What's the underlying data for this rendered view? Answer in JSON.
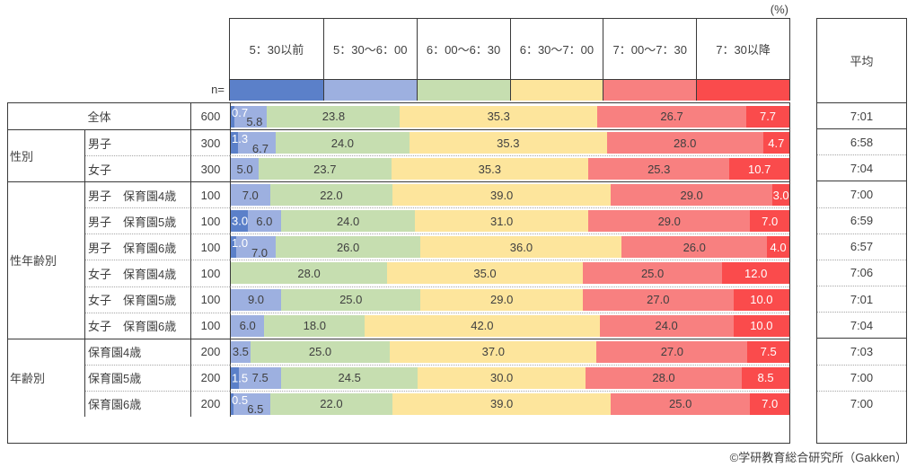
{
  "labels": {
    "percent": "(%)",
    "n": "n=",
    "avg_header": "平均"
  },
  "footer": "©学研教育総合研究所（Gakken）",
  "colors": {
    "border": "#3a3a3a",
    "dotted_separator": "#a6a6a6",
    "text": "#3f3f3f"
  },
  "chart_data": {
    "type": "bar",
    "stacked": true,
    "orientation": "horizontal",
    "unit": "%",
    "xlim": [
      0,
      100
    ],
    "series_labels": [
      "5：30以前",
      "5：30～6：00",
      "6：00～6：30",
      "6：30～7：00",
      "7：00～7：30",
      "7：30以降"
    ],
    "series_colors": [
      "#5b80c9",
      "#9db0e0",
      "#c6deb0",
      "#fde59c",
      "#f88080",
      "#fa4b4c"
    ],
    "series_text_colors": [
      "#ffffff",
      "#3f3f3f",
      "#3f3f3f",
      "#3f3f3f",
      "#3f3f3f",
      "#ffffff"
    ],
    "avg_column_label": "平均",
    "groups": [
      {
        "group": "",
        "rows": [
          {
            "label": "全体",
            "n": "600",
            "values": [
              0.7,
              5.8,
              23.8,
              35.3,
              26.7,
              7.7
            ],
            "avg": "7:01",
            "stagger": true
          }
        ]
      },
      {
        "group": "性別",
        "rows": [
          {
            "label": "男子",
            "n": "300",
            "values": [
              1.3,
              6.7,
              24.0,
              35.3,
              28.0,
              4.7
            ],
            "avg": "6:58",
            "stagger": true
          },
          {
            "label": "女子",
            "n": "300",
            "values": [
              0,
              5.0,
              23.7,
              35.3,
              25.3,
              10.7
            ],
            "avg": "7:04",
            "stagger": false
          }
        ]
      },
      {
        "group": "性年齢別",
        "rows": [
          {
            "label": "男子　保育園4歳",
            "n": "100",
            "values": [
              0,
              7.0,
              22.0,
              39.0,
              29.0,
              3.0
            ],
            "avg": "7:00",
            "stagger": false
          },
          {
            "label": "男子　保育園5歳",
            "n": "100",
            "values": [
              3.0,
              6.0,
              24.0,
              31.0,
              29.0,
              7.0
            ],
            "avg": "6:59",
            "stagger": false
          },
          {
            "label": "男子　保育園6歳",
            "n": "100",
            "values": [
              1.0,
              7.0,
              26.0,
              36.0,
              26.0,
              4.0
            ],
            "avg": "6:57",
            "stagger": true
          },
          {
            "label": "女子　保育園4歳",
            "n": "100",
            "values": [
              0,
              0,
              28.0,
              35.0,
              25.0,
              12.0
            ],
            "avg": "7:06",
            "stagger": false
          },
          {
            "label": "女子　保育園5歳",
            "n": "100",
            "values": [
              0,
              9.0,
              25.0,
              29.0,
              27.0,
              10.0
            ],
            "avg": "7:01",
            "stagger": false
          },
          {
            "label": "女子　保育園6歳",
            "n": "100",
            "values": [
              0,
              6.0,
              18.0,
              42.0,
              24.0,
              10.0
            ],
            "avg": "7:04",
            "stagger": false
          }
        ]
      },
      {
        "group": "年齢別",
        "rows": [
          {
            "label": "保育園4歳",
            "n": "200",
            "values": [
              0,
              3.5,
              25.0,
              37.0,
              27.0,
              7.5
            ],
            "avg": "7:03",
            "stagger": false
          },
          {
            "label": "保育園5歳",
            "n": "200",
            "values": [
              1.5,
              7.5,
              24.5,
              30.0,
              28.0,
              8.5
            ],
            "avg": "7:00",
            "stagger": false
          },
          {
            "label": "保育園6歳",
            "n": "200",
            "values": [
              0.5,
              6.5,
              22.0,
              39.0,
              25.0,
              7.0
            ],
            "avg": "7:00",
            "stagger": true
          }
        ]
      }
    ]
  }
}
